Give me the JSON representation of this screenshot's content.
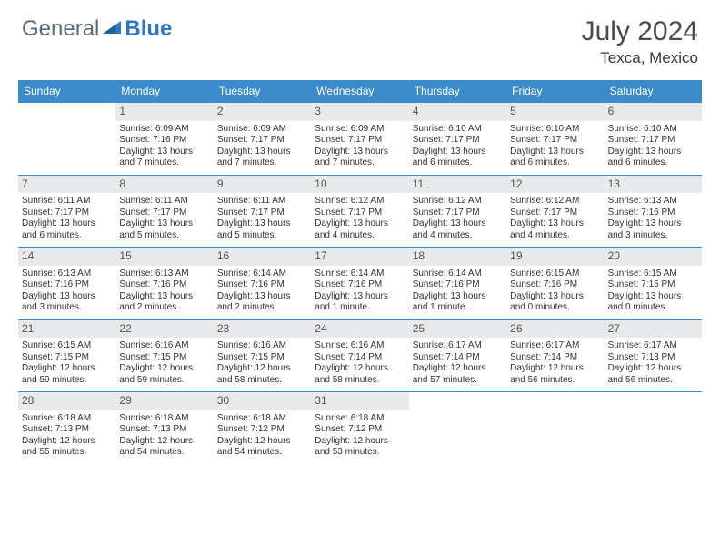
{
  "logo": {
    "general": "General",
    "blue": "Blue"
  },
  "title": "July 2024",
  "location": "Texca, Mexico",
  "weekdays": [
    "Sunday",
    "Monday",
    "Tuesday",
    "Wednesday",
    "Thursday",
    "Friday",
    "Saturday"
  ],
  "colors": {
    "header_bg": "#3b8bca",
    "header_text": "#ffffff",
    "daynum_bg": "#e8e9ea",
    "border": "#3b8bca",
    "logo_general": "#5a6a78",
    "logo_blue": "#2f78bd"
  },
  "leading_blanks": 1,
  "days": [
    {
      "n": 1,
      "sunrise": "Sunrise: 6:09 AM",
      "sunset": "Sunset: 7:16 PM",
      "day1": "Daylight: 13 hours",
      "day2": "and 7 minutes."
    },
    {
      "n": 2,
      "sunrise": "Sunrise: 6:09 AM",
      "sunset": "Sunset: 7:17 PM",
      "day1": "Daylight: 13 hours",
      "day2": "and 7 minutes."
    },
    {
      "n": 3,
      "sunrise": "Sunrise: 6:09 AM",
      "sunset": "Sunset: 7:17 PM",
      "day1": "Daylight: 13 hours",
      "day2": "and 7 minutes."
    },
    {
      "n": 4,
      "sunrise": "Sunrise: 6:10 AM",
      "sunset": "Sunset: 7:17 PM",
      "day1": "Daylight: 13 hours",
      "day2": "and 6 minutes."
    },
    {
      "n": 5,
      "sunrise": "Sunrise: 6:10 AM",
      "sunset": "Sunset: 7:17 PM",
      "day1": "Daylight: 13 hours",
      "day2": "and 6 minutes."
    },
    {
      "n": 6,
      "sunrise": "Sunrise: 6:10 AM",
      "sunset": "Sunset: 7:17 PM",
      "day1": "Daylight: 13 hours",
      "day2": "and 6 minutes."
    },
    {
      "n": 7,
      "sunrise": "Sunrise: 6:11 AM",
      "sunset": "Sunset: 7:17 PM",
      "day1": "Daylight: 13 hours",
      "day2": "and 6 minutes."
    },
    {
      "n": 8,
      "sunrise": "Sunrise: 6:11 AM",
      "sunset": "Sunset: 7:17 PM",
      "day1": "Daylight: 13 hours",
      "day2": "and 5 minutes."
    },
    {
      "n": 9,
      "sunrise": "Sunrise: 6:11 AM",
      "sunset": "Sunset: 7:17 PM",
      "day1": "Daylight: 13 hours",
      "day2": "and 5 minutes."
    },
    {
      "n": 10,
      "sunrise": "Sunrise: 6:12 AM",
      "sunset": "Sunset: 7:17 PM",
      "day1": "Daylight: 13 hours",
      "day2": "and 4 minutes."
    },
    {
      "n": 11,
      "sunrise": "Sunrise: 6:12 AM",
      "sunset": "Sunset: 7:17 PM",
      "day1": "Daylight: 13 hours",
      "day2": "and 4 minutes."
    },
    {
      "n": 12,
      "sunrise": "Sunrise: 6:12 AM",
      "sunset": "Sunset: 7:17 PM",
      "day1": "Daylight: 13 hours",
      "day2": "and 4 minutes."
    },
    {
      "n": 13,
      "sunrise": "Sunrise: 6:13 AM",
      "sunset": "Sunset: 7:16 PM",
      "day1": "Daylight: 13 hours",
      "day2": "and 3 minutes."
    },
    {
      "n": 14,
      "sunrise": "Sunrise: 6:13 AM",
      "sunset": "Sunset: 7:16 PM",
      "day1": "Daylight: 13 hours",
      "day2": "and 3 minutes."
    },
    {
      "n": 15,
      "sunrise": "Sunrise: 6:13 AM",
      "sunset": "Sunset: 7:16 PM",
      "day1": "Daylight: 13 hours",
      "day2": "and 2 minutes."
    },
    {
      "n": 16,
      "sunrise": "Sunrise: 6:14 AM",
      "sunset": "Sunset: 7:16 PM",
      "day1": "Daylight: 13 hours",
      "day2": "and 2 minutes."
    },
    {
      "n": 17,
      "sunrise": "Sunrise: 6:14 AM",
      "sunset": "Sunset: 7:16 PM",
      "day1": "Daylight: 13 hours",
      "day2": "and 1 minute."
    },
    {
      "n": 18,
      "sunrise": "Sunrise: 6:14 AM",
      "sunset": "Sunset: 7:16 PM",
      "day1": "Daylight: 13 hours",
      "day2": "and 1 minute."
    },
    {
      "n": 19,
      "sunrise": "Sunrise: 6:15 AM",
      "sunset": "Sunset: 7:16 PM",
      "day1": "Daylight: 13 hours",
      "day2": "and 0 minutes."
    },
    {
      "n": 20,
      "sunrise": "Sunrise: 6:15 AM",
      "sunset": "Sunset: 7:15 PM",
      "day1": "Daylight: 13 hours",
      "day2": "and 0 minutes."
    },
    {
      "n": 21,
      "sunrise": "Sunrise: 6:15 AM",
      "sunset": "Sunset: 7:15 PM",
      "day1": "Daylight: 12 hours",
      "day2": "and 59 minutes."
    },
    {
      "n": 22,
      "sunrise": "Sunrise: 6:16 AM",
      "sunset": "Sunset: 7:15 PM",
      "day1": "Daylight: 12 hours",
      "day2": "and 59 minutes."
    },
    {
      "n": 23,
      "sunrise": "Sunrise: 6:16 AM",
      "sunset": "Sunset: 7:15 PM",
      "day1": "Daylight: 12 hours",
      "day2": "and 58 minutes."
    },
    {
      "n": 24,
      "sunrise": "Sunrise: 6:16 AM",
      "sunset": "Sunset: 7:14 PM",
      "day1": "Daylight: 12 hours",
      "day2": "and 58 minutes."
    },
    {
      "n": 25,
      "sunrise": "Sunrise: 6:17 AM",
      "sunset": "Sunset: 7:14 PM",
      "day1": "Daylight: 12 hours",
      "day2": "and 57 minutes."
    },
    {
      "n": 26,
      "sunrise": "Sunrise: 6:17 AM",
      "sunset": "Sunset: 7:14 PM",
      "day1": "Daylight: 12 hours",
      "day2": "and 56 minutes."
    },
    {
      "n": 27,
      "sunrise": "Sunrise: 6:17 AM",
      "sunset": "Sunset: 7:13 PM",
      "day1": "Daylight: 12 hours",
      "day2": "and 56 minutes."
    },
    {
      "n": 28,
      "sunrise": "Sunrise: 6:18 AM",
      "sunset": "Sunset: 7:13 PM",
      "day1": "Daylight: 12 hours",
      "day2": "and 55 minutes."
    },
    {
      "n": 29,
      "sunrise": "Sunrise: 6:18 AM",
      "sunset": "Sunset: 7:13 PM",
      "day1": "Daylight: 12 hours",
      "day2": "and 54 minutes."
    },
    {
      "n": 30,
      "sunrise": "Sunrise: 6:18 AM",
      "sunset": "Sunset: 7:12 PM",
      "day1": "Daylight: 12 hours",
      "day2": "and 54 minutes."
    },
    {
      "n": 31,
      "sunrise": "Sunrise: 6:18 AM",
      "sunset": "Sunset: 7:12 PM",
      "day1": "Daylight: 12 hours",
      "day2": "and 53 minutes."
    }
  ]
}
